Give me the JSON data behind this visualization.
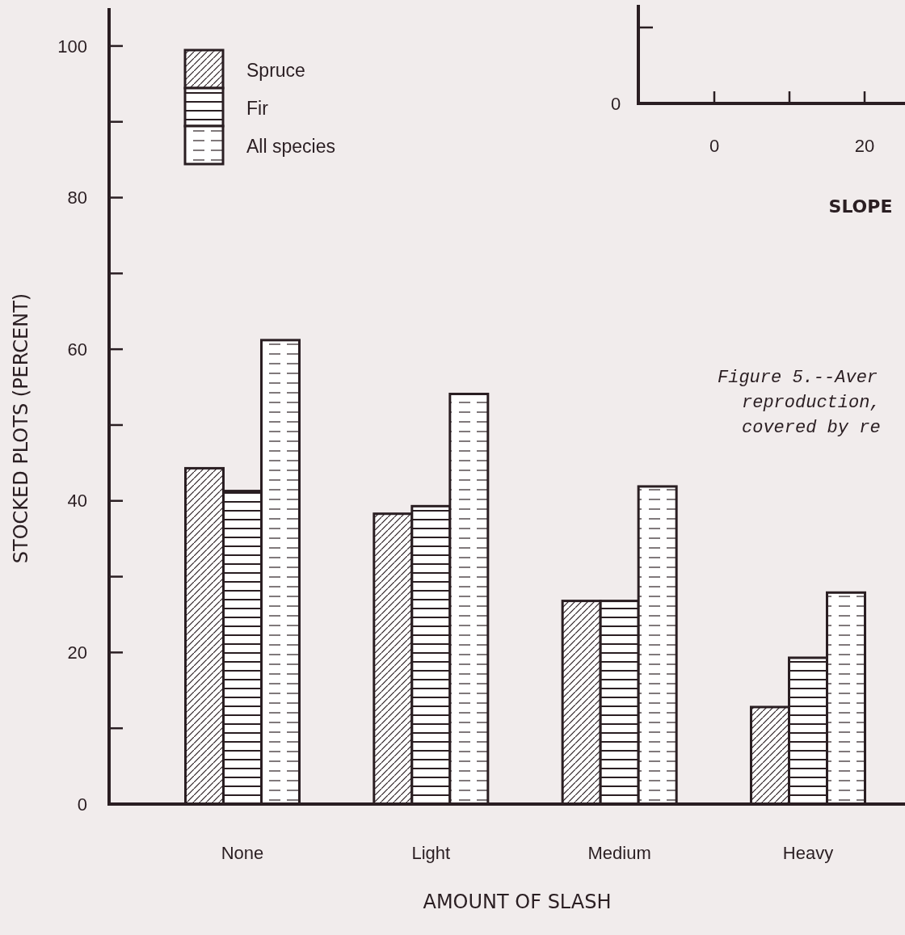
{
  "chart_data": [
    {
      "type": "bar",
      "ylabel": "STOCKED PLOTS (PERCENT)",
      "xlabel": "AMOUNT OF SLASH",
      "categories": [
        "None",
        "Light",
        "Medium",
        "Heavy"
      ],
      "series": [
        {
          "name": "Spruce",
          "color": "#2a1e22",
          "values": [
            44.3,
            38.3,
            26.8,
            12.8
          ]
        },
        {
          "name": "Fir",
          "color": "#2a1e22",
          "values": [
            41.3,
            39.3,
            26.8,
            19.3
          ]
        },
        {
          "name": "All species",
          "color": "#2a1e22",
          "values": [
            61.2,
            54.1,
            41.9,
            27.9
          ]
        }
      ],
      "ylim": [
        0,
        105
      ],
      "yticks": [
        0,
        20,
        40,
        60,
        80,
        100
      ],
      "legend": "top left",
      "grid": false,
      "annotations": [
        "Figure 5.--Aver",
        "reproduction,",
        "covered by re"
      ]
    },
    {
      "type": "other",
      "xlabel": "SLOPE",
      "annotations": [
        "0",
        "0",
        "20"
      ]
    }
  ]
}
